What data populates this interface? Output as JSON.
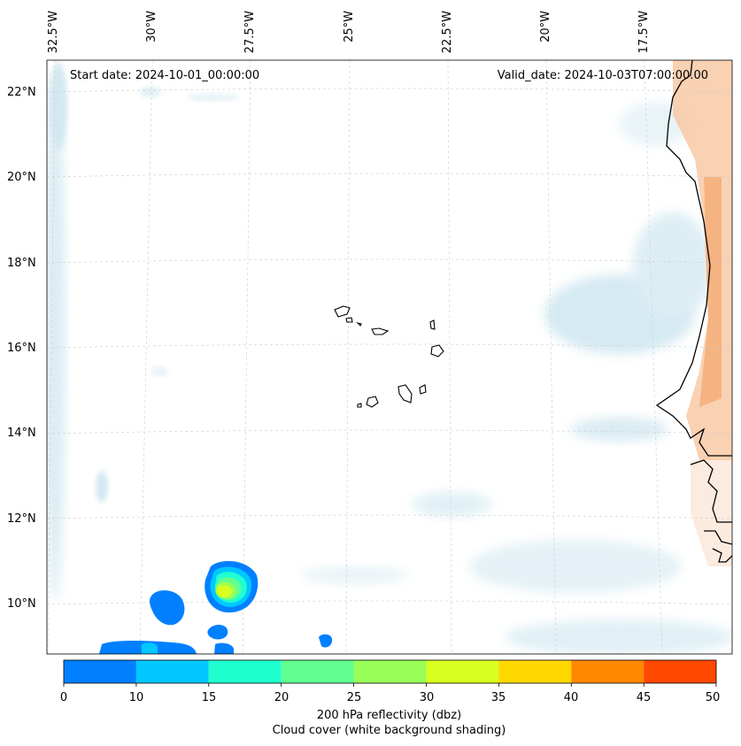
{
  "header": {
    "start_date": "Start date: 2024-10-01_00:00:00",
    "valid_date": "Valid_date: 2024-10-03T07:00:00.00"
  },
  "axes": {
    "longitude_labels": [
      "32.5°W",
      "30°W",
      "27.5°W",
      "25°W",
      "22.5°W",
      "20°W",
      "17.5°W"
    ],
    "latitude_labels": [
      "22°N",
      "20°N",
      "18°N",
      "16°N",
      "14°N",
      "12°N",
      "10°N"
    ]
  },
  "colorbar": {
    "ticks": [
      "0",
      "10",
      "15",
      "20",
      "25",
      "30",
      "35",
      "40",
      "45",
      "50"
    ],
    "colors": [
      "#0080ff",
      "#00c8ff",
      "#20ffd0",
      "#60ff90",
      "#98ff58",
      "#d8ff20",
      "#ffd800",
      "#ff8800",
      "#ff4800"
    ],
    "label_line1": "200 hPa reflectivity (dbz)",
    "label_line2": "Cloud cover (white background shading)"
  },
  "colors": {
    "cloud": "#d6ebf2",
    "land_warm": "#f6b88a",
    "coast": "#000000",
    "grid": "#cccccc"
  }
}
